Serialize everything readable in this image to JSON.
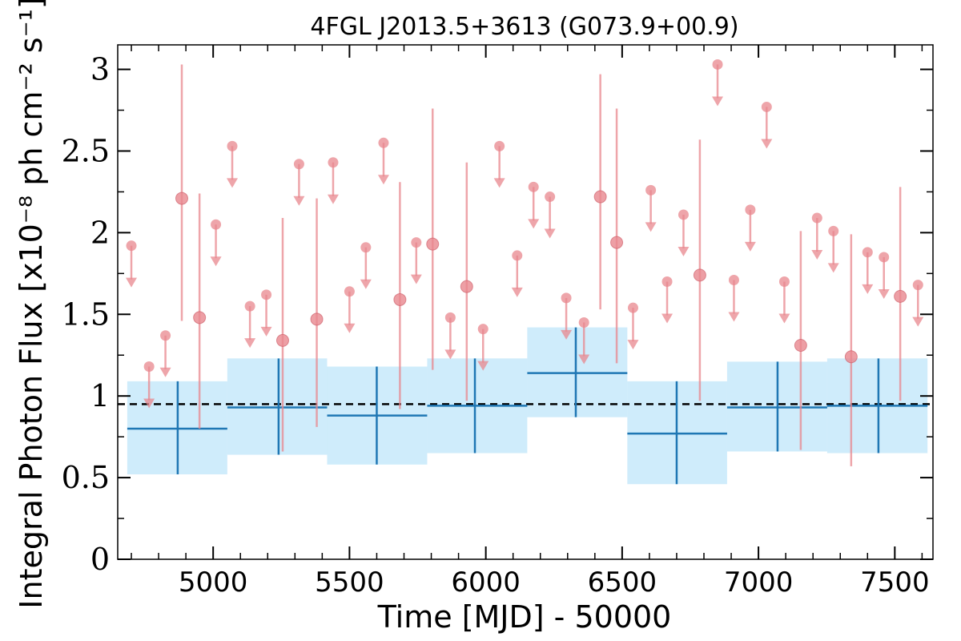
{
  "chart_data": {
    "type": "scatter",
    "title": "4FGL J2013.5+3613 (G073.9+00.9)",
    "xlabel": "Time [MJD] - 50000",
    "ylabel": "Integral Photon Flux [x10⁻⁸ ph cm⁻² s⁻¹]",
    "xlim": [
      4650,
      7640
    ],
    "ylim": [
      0,
      3.15
    ],
    "x_ticks": [
      5000,
      5500,
      6000,
      6500,
      7000,
      7500
    ],
    "x_tick_labels": [
      "5000",
      "5500",
      "6000",
      "6500",
      "7000",
      "7500"
    ],
    "y_ticks": [
      0,
      0.5,
      1,
      1.5,
      2,
      2.5,
      3
    ],
    "y_tick_labels": [
      "0",
      "0.5",
      "1",
      "1.5",
      "2",
      "2.5",
      "3"
    ],
    "grid": false,
    "average_flux": 0.95,
    "colors": {
      "short_bins": "#e8878e",
      "long_bins": "#1f77b4",
      "long_bins_band": "#a8dcf7",
      "mean_line": "#000000"
    },
    "long_bins": [
      {
        "x": 4870,
        "x_lo": 4685,
        "x_hi": 5052,
        "y": 0.8,
        "y_lo": 0.52,
        "y_hi": 1.09
      },
      {
        "x": 5240,
        "x_lo": 5052,
        "x_hi": 5418,
        "y": 0.93,
        "y_lo": 0.64,
        "y_hi": 1.23
      },
      {
        "x": 5600,
        "x_lo": 5418,
        "x_hi": 5785,
        "y": 0.88,
        "y_lo": 0.58,
        "y_hi": 1.18
      },
      {
        "x": 5960,
        "x_lo": 5785,
        "x_hi": 6152,
        "y": 0.94,
        "y_lo": 0.65,
        "y_hi": 1.23
      },
      {
        "x": 6330,
        "x_lo": 6152,
        "x_hi": 6519,
        "y": 1.14,
        "y_lo": 0.87,
        "y_hi": 1.42
      },
      {
        "x": 6700,
        "x_lo": 6519,
        "x_hi": 6885,
        "y": 0.77,
        "y_lo": 0.46,
        "y_hi": 1.09
      },
      {
        "x": 7070,
        "x_lo": 6885,
        "x_hi": 7252,
        "y": 0.93,
        "y_lo": 0.66,
        "y_hi": 1.21
      },
      {
        "x": 7440,
        "x_lo": 7252,
        "x_hi": 7620,
        "y": 0.94,
        "y_lo": 0.65,
        "y_hi": 1.23
      }
    ],
    "short_bins": [
      {
        "x": 4700,
        "y": 1.92,
        "upper_limit": true
      },
      {
        "x": 4765,
        "y": 1.18,
        "upper_limit": true
      },
      {
        "x": 4825,
        "y": 1.37,
        "upper_limit": true
      },
      {
        "x": 4885,
        "y": 2.21,
        "y_lo": 1.46,
        "y_hi": 3.03,
        "upper_limit": false
      },
      {
        "x": 4950,
        "y": 1.48,
        "y_lo": 0.8,
        "y_hi": 2.24,
        "upper_limit": false
      },
      {
        "x": 5010,
        "y": 2.05,
        "upper_limit": true
      },
      {
        "x": 5070,
        "y": 2.53,
        "upper_limit": true
      },
      {
        "x": 5135,
        "y": 1.55,
        "upper_limit": true
      },
      {
        "x": 5195,
        "y": 1.62,
        "upper_limit": true
      },
      {
        "x": 5255,
        "y": 1.34,
        "y_lo": 0.66,
        "y_hi": 2.09,
        "upper_limit": false
      },
      {
        "x": 5315,
        "y": 2.42,
        "upper_limit": true
      },
      {
        "x": 5380,
        "y": 1.47,
        "y_lo": 0.81,
        "y_hi": 2.21,
        "upper_limit": false
      },
      {
        "x": 5440,
        "y": 2.43,
        "upper_limit": true
      },
      {
        "x": 5500,
        "y": 1.64,
        "upper_limit": true
      },
      {
        "x": 5560,
        "y": 1.91,
        "upper_limit": true
      },
      {
        "x": 5625,
        "y": 2.55,
        "upper_limit": true
      },
      {
        "x": 5685,
        "y": 1.59,
        "y_lo": 0.92,
        "y_hi": 2.31,
        "upper_limit": false
      },
      {
        "x": 5745,
        "y": 1.94,
        "upper_limit": true
      },
      {
        "x": 5805,
        "y": 1.93,
        "y_lo": 1.16,
        "y_hi": 2.76,
        "upper_limit": false
      },
      {
        "x": 5870,
        "y": 1.48,
        "upper_limit": true
      },
      {
        "x": 5930,
        "y": 1.67,
        "y_lo": 0.97,
        "y_hi": 2.43,
        "upper_limit": false
      },
      {
        "x": 5990,
        "y": 1.41,
        "upper_limit": true
      },
      {
        "x": 6050,
        "y": 2.53,
        "upper_limit": true
      },
      {
        "x": 6115,
        "y": 1.86,
        "upper_limit": true
      },
      {
        "x": 6175,
        "y": 2.28,
        "upper_limit": true
      },
      {
        "x": 6235,
        "y": 2.22,
        "upper_limit": true
      },
      {
        "x": 6295,
        "y": 1.6,
        "upper_limit": true
      },
      {
        "x": 6360,
        "y": 1.45,
        "upper_limit": true
      },
      {
        "x": 6420,
        "y": 2.22,
        "y_lo": 1.53,
        "y_hi": 2.97,
        "upper_limit": false
      },
      {
        "x": 6480,
        "y": 1.94,
        "y_lo": 1.2,
        "y_hi": 2.76,
        "upper_limit": false
      },
      {
        "x": 6540,
        "y": 1.54,
        "upper_limit": true
      },
      {
        "x": 6605,
        "y": 2.26,
        "upper_limit": true
      },
      {
        "x": 6665,
        "y": 1.7,
        "upper_limit": true
      },
      {
        "x": 6725,
        "y": 2.11,
        "upper_limit": true
      },
      {
        "x": 6785,
        "y": 1.74,
        "y_lo": 0.97,
        "y_hi": 2.57,
        "upper_limit": false
      },
      {
        "x": 6850,
        "y": 3.03,
        "upper_limit": true
      },
      {
        "x": 6910,
        "y": 1.71,
        "upper_limit": true
      },
      {
        "x": 6970,
        "y": 2.14,
        "upper_limit": true
      },
      {
        "x": 7030,
        "y": 2.77,
        "upper_limit": true
      },
      {
        "x": 7095,
        "y": 1.7,
        "upper_limit": true
      },
      {
        "x": 7155,
        "y": 1.31,
        "y_lo": 0.67,
        "y_hi": 2.01,
        "upper_limit": false
      },
      {
        "x": 7215,
        "y": 2.09,
        "upper_limit": true
      },
      {
        "x": 7275,
        "y": 2.01,
        "upper_limit": true
      },
      {
        "x": 7340,
        "y": 1.24,
        "y_lo": 0.57,
        "y_hi": 1.99,
        "upper_limit": false
      },
      {
        "x": 7400,
        "y": 1.88,
        "upper_limit": true
      },
      {
        "x": 7460,
        "y": 1.85,
        "upper_limit": true
      },
      {
        "x": 7520,
        "y": 1.61,
        "y_lo": 0.97,
        "y_hi": 2.28,
        "upper_limit": false
      },
      {
        "x": 7585,
        "y": 1.68,
        "upper_limit": true
      }
    ]
  }
}
